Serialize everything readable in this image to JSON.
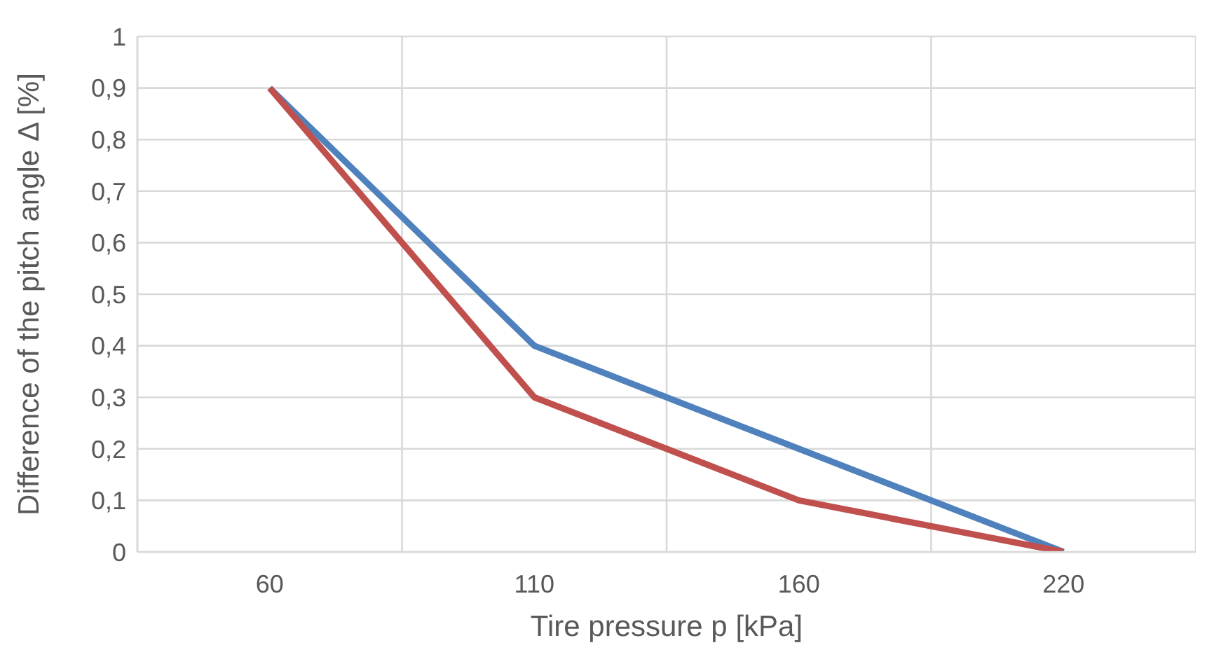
{
  "chart_data": {
    "type": "line",
    "xlabel": "Tire pressure p [kPa]",
    "ylabel": "Difference of the pitch angle Δ [%]",
    "categories": [
      "60",
      "110",
      "160",
      "220"
    ],
    "series": [
      {
        "color": "#4f81bd",
        "values": [
          0.9,
          0.4,
          0.2,
          0
        ]
      },
      {
        "color": "#c0504d",
        "values": [
          0.9,
          0.3,
          0.1,
          0
        ]
      }
    ],
    "ylim": [
      0,
      1
    ],
    "yticks": [
      {
        "value": 0,
        "label": "0"
      },
      {
        "value": 0.1,
        "label": "0,1"
      },
      {
        "value": 0.2,
        "label": "0,2"
      },
      {
        "value": 0.3,
        "label": "0,3"
      },
      {
        "value": 0.4,
        "label": "0,4"
      },
      {
        "value": 0.5,
        "label": "0,5"
      },
      {
        "value": 0.6,
        "label": "0,6"
      },
      {
        "value": 0.7,
        "label": "0,7"
      },
      {
        "value": 0.8,
        "label": "0,8"
      },
      {
        "value": 0.9,
        "label": "0,9"
      },
      {
        "value": 1,
        "label": "1"
      }
    ],
    "grid": true,
    "marker": "none",
    "line_style": "solid"
  }
}
